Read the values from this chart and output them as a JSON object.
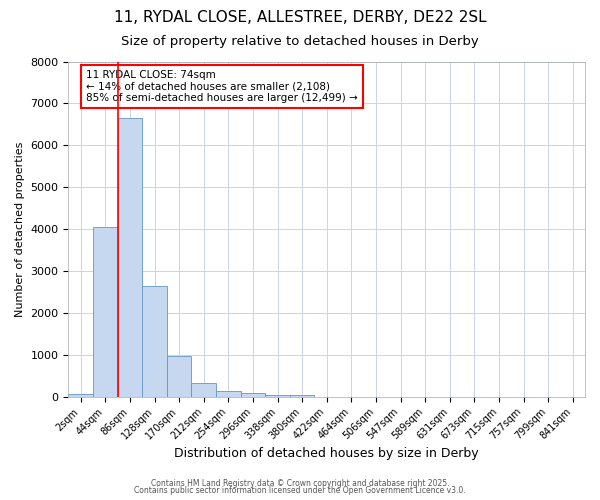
{
  "title1": "11, RYDAL CLOSE, ALLESTREE, DERBY, DE22 2SL",
  "title2": "Size of property relative to detached houses in Derby",
  "xlabel": "Distribution of detached houses by size in Derby",
  "ylabel": "Number of detached properties",
  "bar_color": "#c5d8f0",
  "bar_edge_color": "#6496c8",
  "bin_labels": [
    "2sqm",
    "44sqm",
    "86sqm",
    "128sqm",
    "170sqm",
    "212sqm",
    "254sqm",
    "296sqm",
    "338sqm",
    "380sqm",
    "422sqm",
    "464sqm",
    "506sqm",
    "547sqm",
    "589sqm",
    "631sqm",
    "673sqm",
    "715sqm",
    "757sqm",
    "799sqm",
    "841sqm"
  ],
  "bin_values": [
    75,
    4050,
    6650,
    2650,
    975,
    325,
    125,
    80,
    50,
    50,
    0,
    0,
    0,
    0,
    0,
    0,
    0,
    0,
    0,
    0,
    0
  ],
  "red_line_x": 1.5,
  "annotation_title": "11 RYDAL CLOSE: 74sqm",
  "annotation_line1": "← 14% of detached houses are smaller (2,108)",
  "annotation_line2": "85% of semi-detached houses are larger (12,499) →",
  "vline_color": "red",
  "ylim": [
    0,
    8000
  ],
  "yticks": [
    0,
    1000,
    2000,
    3000,
    4000,
    5000,
    6000,
    7000,
    8000
  ],
  "grid_color": "#c8d4e8",
  "background_color": "#ffffff",
  "plot_bg_color": "#ffffff",
  "footer1": "Contains HM Land Registry data © Crown copyright and database right 2025.",
  "footer2": "Contains public sector information licensed under the Open Government Licence v3.0.",
  "title1_fontsize": 11,
  "title2_fontsize": 9.5,
  "xlabel_fontsize": 9,
  "ylabel_fontsize": 8,
  "tick_fontsize": 7,
  "annotation_fontsize": 7.5,
  "footer_fontsize": 5.5
}
